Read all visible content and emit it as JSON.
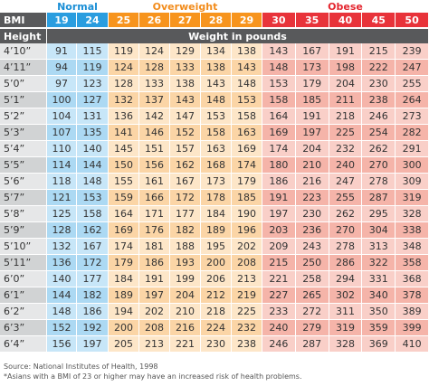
{
  "table": {
    "groups": [
      "Normal",
      "Overweight",
      "Obese"
    ],
    "bmi_label": "BMI",
    "bmi": [
      19,
      24,
      25,
      26,
      27,
      28,
      29,
      30,
      35,
      40,
      45,
      50
    ],
    "height_label": "Height",
    "weight_label": "Weight in pounds",
    "rows": [
      [
        "4’10”",
        91,
        115,
        119,
        124,
        129,
        134,
        138,
        143,
        167,
        191,
        215,
        239
      ],
      [
        "4’11”",
        94,
        119,
        124,
        128,
        133,
        138,
        143,
        148,
        173,
        198,
        222,
        247
      ],
      [
        "5’0”",
        97,
        123,
        128,
        133,
        138,
        143,
        148,
        153,
        179,
        204,
        230,
        255
      ],
      [
        "5’1”",
        100,
        127,
        132,
        137,
        143,
        148,
        153,
        158,
        185,
        211,
        238,
        264
      ],
      [
        "5’2”",
        104,
        131,
        136,
        142,
        147,
        153,
        158,
        164,
        191,
        218,
        246,
        273
      ],
      [
        "5’3”",
        107,
        135,
        141,
        146,
        152,
        158,
        163,
        169,
        197,
        225,
        254,
        282
      ],
      [
        "5’4”",
        110,
        140,
        145,
        151,
        157,
        163,
        169,
        174,
        204,
        232,
        262,
        291
      ],
      [
        "5’5”",
        114,
        144,
        150,
        156,
        162,
        168,
        174,
        180,
        210,
        240,
        270,
        300
      ],
      [
        "5’6”",
        118,
        148,
        155,
        161,
        167,
        173,
        179,
        186,
        216,
        247,
        278,
        309
      ],
      [
        "5’7”",
        121,
        153,
        159,
        166,
        172,
        178,
        185,
        191,
        223,
        255,
        287,
        319
      ],
      [
        "5’8”",
        125,
        158,
        164,
        171,
        177,
        184,
        190,
        197,
        230,
        262,
        295,
        328
      ],
      [
        "5’9”",
        128,
        162,
        169,
        176,
        182,
        189,
        196,
        203,
        236,
        270,
        304,
        338
      ],
      [
        "5’10”",
        132,
        167,
        174,
        181,
        188,
        195,
        202,
        209,
        243,
        278,
        313,
        348
      ],
      [
        "5’11”",
        136,
        172,
        179,
        186,
        193,
        200,
        208,
        215,
        250,
        286,
        322,
        358
      ],
      [
        "6’0”",
        140,
        177,
        184,
        191,
        199,
        206,
        213,
        221,
        258,
        294,
        331,
        368
      ],
      [
        "6’1”",
        144,
        182,
        189,
        197,
        204,
        212,
        219,
        227,
        265,
        302,
        340,
        378
      ],
      [
        "6’2”",
        148,
        186,
        194,
        202,
        210,
        218,
        225,
        233,
        272,
        311,
        350,
        389
      ],
      [
        "6’3”",
        152,
        192,
        200,
        208,
        216,
        224,
        232,
        240,
        279,
        319,
        359,
        399
      ],
      [
        "6’4”",
        156,
        197,
        205,
        213,
        221,
        230,
        238,
        246,
        287,
        328,
        369,
        410
      ]
    ]
  },
  "footer": {
    "source": "Source: National Institutes of Health, 1998",
    "note": "*Asians with a BMI of 23 or higher may have an increased risk of health problems."
  }
}
